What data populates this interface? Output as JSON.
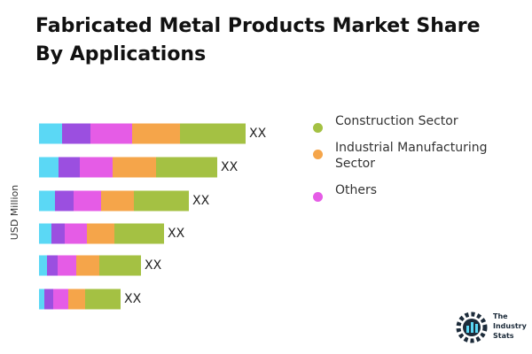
{
  "chart_data": {
    "type": "stacked-bar-horizontal",
    "title": "Fabricated Metal Products Market Share By Applications",
    "y_label": "USD Million",
    "categories": [
      null,
      null,
      null,
      null,
      null,
      null
    ],
    "series": [
      {
        "color": "#5bd8f5",
        "values": [
          26,
          22,
          18,
          14,
          9,
          6
        ]
      },
      {
        "color": "#9b4fe0",
        "values": [
          32,
          24,
          21,
          15,
          12,
          10
        ]
      },
      {
        "name": "Others",
        "color": "#e55ce6",
        "values": [
          47,
          37,
          31,
          25,
          21,
          17
        ]
      },
      {
        "name": "Industrial Manufacturing Sector",
        "color": "#f5a54a",
        "values": [
          54,
          49,
          37,
          31,
          26,
          19
        ]
      },
      {
        "name": "Construction Sector",
        "color": "#a4c143",
        "values": [
          74,
          69,
          62,
          56,
          47,
          40
        ],
        "value_labels": [
          "XX",
          "XX",
          "XX",
          "XX",
          "XX",
          "XX"
        ]
      }
    ]
  },
  "branding": {
    "lines": [
      "The",
      "Industry",
      "Stats"
    ]
  }
}
